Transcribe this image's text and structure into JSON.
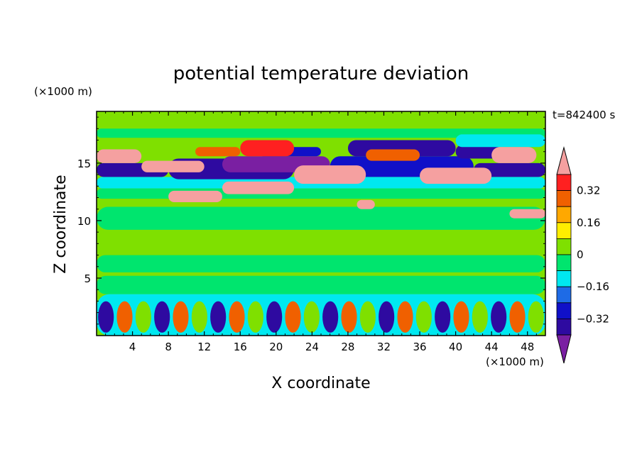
{
  "chart_data": {
    "type": "heatmap",
    "title": "potential temperature deviation",
    "xlabel": "X coordinate",
    "ylabel": "Z coordinate",
    "x_unit": "(×1000 m)",
    "y_unit": "(×1000 m)",
    "time_label": "t=842400 s",
    "xlim": [
      0,
      50
    ],
    "ylim": [
      0,
      19.5
    ],
    "x_ticks": [
      4,
      8,
      12,
      16,
      20,
      24,
      28,
      32,
      36,
      40,
      44,
      48
    ],
    "y_ticks": [
      5,
      10,
      15
    ],
    "colorbar": {
      "levels": [
        -0.4,
        -0.32,
        -0.24,
        -0.16,
        -0.08,
        0,
        0.08,
        0.16,
        0.24,
        0.32,
        0.4
      ],
      "tick_labels": [
        "0.32",
        "0.16",
        "0",
        "−0.16",
        "−0.32"
      ],
      "tick_values": [
        0.32,
        0.16,
        0,
        -0.16,
        -0.32
      ],
      "colors": [
        "#7a1fa2",
        "#2e0aa0",
        "#1010c8",
        "#1e6be6",
        "#00e8f0",
        "#00e56e",
        "#7fe000",
        "#ffee00",
        "#ffa800",
        "#f06000",
        "#ff2020",
        "#f5a0a0"
      ]
    },
    "background_color": "#7fe000",
    "regions": [
      {
        "x": [
          0,
          50
        ],
        "z": [
          12.8,
          13.8
        ],
        "value": -0.12
      },
      {
        "x": [
          0,
          50
        ],
        "z": [
          11.9,
          12.8
        ],
        "value": -0.05
      },
      {
        "x": [
          0,
          50
        ],
        "z": [
          9.2,
          11.2
        ],
        "value": -0.04
      },
      {
        "x": [
          0,
          50
        ],
        "z": [
          5.5,
          7.0
        ],
        "value": -0.03
      },
      {
        "x": [
          0,
          50
        ],
        "z": [
          3.6,
          5.2
        ],
        "value": -0.02
      },
      {
        "x": [
          0,
          50
        ],
        "z": [
          17.2,
          18.0
        ],
        "value": -0.02
      },
      {
        "x": [
          0,
          8
        ],
        "z": [
          13.8,
          15.0
        ],
        "value": -0.38
      },
      {
        "x": [
          8,
          22
        ],
        "z": [
          13.6,
          15.4
        ],
        "value": -0.4
      },
      {
        "x": [
          14,
          26
        ],
        "z": [
          14.2,
          15.6
        ],
        "value": -0.45
      },
      {
        "x": [
          26,
          42
        ],
        "z": [
          13.8,
          15.6
        ],
        "value": -0.3
      },
      {
        "x": [
          42,
          50
        ],
        "z": [
          13.8,
          15.0
        ],
        "value": -0.35
      },
      {
        "x": [
          28,
          40
        ],
        "z": [
          15.6,
          17.0
        ],
        "value": -0.33
      },
      {
        "x": [
          18,
          25
        ],
        "z": [
          15.6,
          16.4
        ],
        "value": -0.3
      },
      {
        "x": [
          40,
          45
        ],
        "z": [
          15.4,
          16.6
        ],
        "value": -0.34
      },
      {
        "x": [
          40,
          50
        ],
        "z": [
          16.4,
          17.5
        ],
        "value": -0.12
      },
      {
        "x": [
          0,
          5
        ],
        "z": [
          15.0,
          16.2
        ],
        "value": 0.45
      },
      {
        "x": [
          5,
          12
        ],
        "z": [
          14.2,
          15.2
        ],
        "value": 0.45
      },
      {
        "x": [
          8,
          14
        ],
        "z": [
          11.6,
          12.6
        ],
        "value": 0.42
      },
      {
        "x": [
          14,
          22
        ],
        "z": [
          12.3,
          13.4
        ],
        "value": 0.43
      },
      {
        "x": [
          22,
          30
        ],
        "z": [
          13.2,
          14.8
        ],
        "value": 0.44
      },
      {
        "x": [
          16,
          22
        ],
        "z": [
          15.6,
          17.0
        ],
        "value": 0.34
      },
      {
        "x": [
          11,
          16
        ],
        "z": [
          15.6,
          16.4
        ],
        "value": 0.3
      },
      {
        "x": [
          30,
          36
        ],
        "z": [
          15.2,
          16.2
        ],
        "value": 0.3
      },
      {
        "x": [
          36,
          44
        ],
        "z": [
          13.2,
          14.6
        ],
        "value": 0.4
      },
      {
        "x": [
          44,
          49
        ],
        "z": [
          15.0,
          16.4
        ],
        "value": 0.42
      },
      {
        "x": [
          29,
          31
        ],
        "z": [
          11.0,
          11.8
        ],
        "value": 0.42
      },
      {
        "x": [
          46,
          50
        ],
        "z": [
          10.2,
          11.0
        ],
        "value": 0.42
      },
      {
        "x": [
          0,
          50
        ],
        "z": [
          0,
          3.6
        ],
        "value": -0.1
      }
    ]
  }
}
